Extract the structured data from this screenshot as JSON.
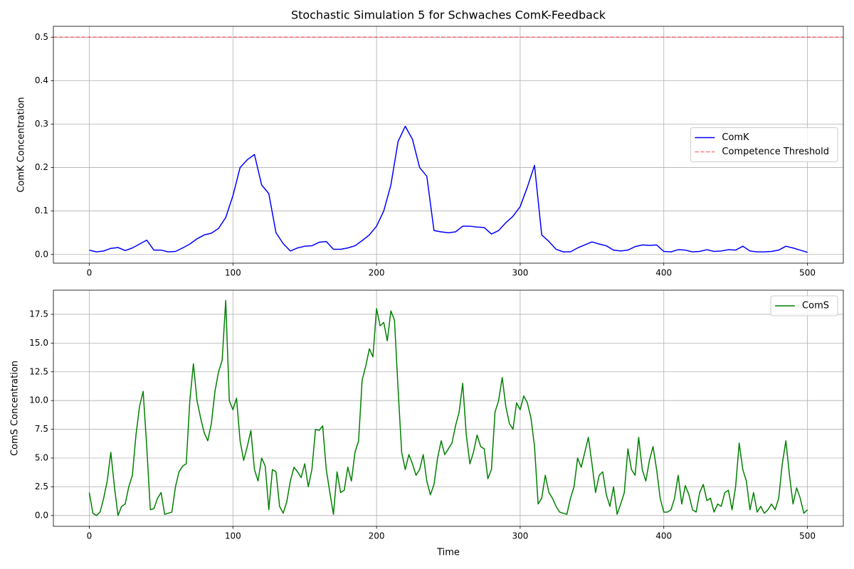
{
  "chart_data": [
    {
      "type": "line",
      "title": "Stochastic Simulation 5 for Schwaches ComK-Feedback",
      "ylabel": "ComK Concentration",
      "x": [
        0,
        5,
        10,
        15,
        20,
        25,
        30,
        35,
        40,
        45,
        50,
        55,
        60,
        65,
        70,
        75,
        80,
        85,
        90,
        95,
        100,
        105,
        110,
        115,
        120,
        125,
        130,
        135,
        140,
        145,
        150,
        155,
        160,
        165,
        170,
        175,
        180,
        185,
        190,
        195,
        200,
        205,
        210,
        215,
        220,
        225,
        230,
        235,
        240,
        245,
        250,
        255,
        260,
        265,
        270,
        275,
        280,
        285,
        290,
        295,
        300,
        305,
        310,
        315,
        320,
        325,
        330,
        335,
        340,
        345,
        350,
        355,
        360,
        365,
        370,
        375,
        380,
        385,
        390,
        395,
        400,
        405,
        410,
        415,
        420,
        425,
        430,
        435,
        440,
        445,
        450,
        455,
        460,
        465,
        470,
        475,
        480,
        485,
        490,
        495,
        500
      ],
      "series": [
        {
          "name": "ComK",
          "color": "#0000ff",
          "values": [
            0.01,
            0.006,
            0.008,
            0.014,
            0.016,
            0.009,
            0.015,
            0.024,
            0.033,
            0.01,
            0.01,
            0.006,
            0.007,
            0.015,
            0.024,
            0.036,
            0.045,
            0.049,
            0.06,
            0.085,
            0.135,
            0.2,
            0.218,
            0.23,
            0.16,
            0.14,
            0.05,
            0.025,
            0.008,
            0.015,
            0.019,
            0.02,
            0.028,
            0.03,
            0.012,
            0.012,
            0.015,
            0.02,
            0.032,
            0.045,
            0.065,
            0.1,
            0.16,
            0.26,
            0.295,
            0.265,
            0.2,
            0.18,
            0.055,
            0.052,
            0.05,
            0.052,
            0.065,
            0.065,
            0.063,
            0.062,
            0.047,
            0.055,
            0.073,
            0.088,
            0.11,
            0.155,
            0.205,
            0.045,
            0.03,
            0.012,
            0.006,
            0.006,
            0.015,
            0.022,
            0.029,
            0.024,
            0.02,
            0.01,
            0.008,
            0.01,
            0.018,
            0.022,
            0.021,
            0.022,
            0.007,
            0.006,
            0.011,
            0.01,
            0.006,
            0.007,
            0.011,
            0.007,
            0.008,
            0.011,
            0.01,
            0.019,
            0.008,
            0.006,
            0.006,
            0.007,
            0.01,
            0.019,
            0.015,
            0.01,
            0.005
          ]
        }
      ],
      "hlines": [
        {
          "name": "Competence Threshold",
          "value": 0.5,
          "color": "#ff0000",
          "style": "dashed",
          "alpha": 0.5
        }
      ],
      "xlim": [
        -25,
        525
      ],
      "ylim": [
        -0.02,
        0.525
      ],
      "xticks": [
        0,
        100,
        200,
        300,
        400,
        500
      ],
      "yticks": [
        {
          "value": 0,
          "label": "0.0"
        },
        0.1,
        0.2,
        0.3,
        0.4,
        0.5
      ],
      "grid": true,
      "legend": "center right"
    },
    {
      "type": "line",
      "xlabel": "Time",
      "ylabel": "ComS Concentration",
      "x": [
        0,
        2.5,
        5,
        7.5,
        10,
        12.5,
        15,
        17.5,
        20,
        22.5,
        25,
        27.5,
        30,
        32.5,
        35,
        37.5,
        40,
        42.5,
        45,
        47.5,
        50,
        52.5,
        55,
        57.5,
        60,
        62.5,
        65,
        67.5,
        70,
        72.5,
        75,
        77.5,
        80,
        82.5,
        85,
        87.5,
        90,
        92.5,
        95,
        97.5,
        100,
        102.5,
        105,
        107.5,
        110,
        112.5,
        115,
        117.5,
        120,
        122.5,
        125,
        127.5,
        130,
        132.5,
        135,
        137.5,
        140,
        142.5,
        145,
        147.5,
        150,
        152.5,
        155,
        157.5,
        160,
        162.5,
        165,
        167.5,
        170,
        172.5,
        175,
        177.5,
        180,
        182.5,
        185,
        187.5,
        190,
        192.5,
        195,
        197.5,
        200,
        202.5,
        205,
        207.5,
        210,
        212.5,
        215,
        217.5,
        220,
        222.5,
        225,
        227.5,
        230,
        232.5,
        235,
        237.5,
        240,
        242.5,
        245,
        247.5,
        250,
        252.5,
        255,
        257.5,
        260,
        262.5,
        265,
        267.5,
        270,
        272.5,
        275,
        277.5,
        280,
        282.5,
        285,
        287.5,
        290,
        292.5,
        295,
        297.5,
        300,
        302.5,
        305,
        307.5,
        310,
        312.5,
        315,
        317.5,
        320,
        322.5,
        325,
        327.5,
        330,
        332.5,
        335,
        337.5,
        340,
        342.5,
        345,
        347.5,
        350,
        352.5,
        355,
        357.5,
        360,
        362.5,
        365,
        367.5,
        370,
        372.5,
        375,
        377.5,
        380,
        382.5,
        385,
        387.5,
        390,
        392.5,
        395,
        397.5,
        400,
        402.5,
        405,
        407.5,
        410,
        412.5,
        415,
        417.5,
        420,
        422.5,
        425,
        427.5,
        430,
        432.5,
        435,
        437.5,
        440,
        442.5,
        445,
        447.5,
        450,
        452.5,
        455,
        457.5,
        460,
        462.5,
        465,
        467.5,
        470,
        472.5,
        475,
        477.5,
        480,
        482.5,
        485,
        487.5,
        490,
        492.5,
        495,
        497.5,
        500
      ],
      "series": [
        {
          "name": "ComS",
          "color": "#008000",
          "values": [
            2.0,
            0.2,
            0,
            0.3,
            1.5,
            3.0,
            5.5,
            2.5,
            0,
            0.8,
            1.0,
            2.5,
            3.5,
            7.0,
            9.5,
            10.8,
            6.0,
            0.5,
            0.6,
            1.5,
            2.0,
            0.1,
            0.2,
            0.3,
            2.5,
            3.8,
            4.3,
            4.5,
            10.0,
            13.2,
            10.0,
            8.5,
            7.2,
            6.5,
            8.0,
            10.8,
            12.5,
            13.5,
            18.7,
            10.0,
            9.2,
            10.2,
            6.5,
            4.8,
            6.0,
            7.4,
            4.0,
            3.0,
            5.0,
            4.3,
            0.5,
            4.0,
            3.8,
            0.8,
            0.2,
            1.2,
            3.0,
            4.2,
            3.8,
            3.3,
            4.5,
            2.5,
            4.0,
            7.5,
            7.4,
            7.8,
            4.0,
            2.0,
            0.1,
            3.8,
            2.0,
            2.2,
            4.2,
            3.0,
            5.5,
            6.5,
            11.8,
            13.0,
            14.5,
            13.8,
            18.0,
            16.5,
            16.8,
            15.2,
            17.8,
            17.0,
            11.0,
            5.5,
            4.0,
            5.3,
            4.5,
            3.5,
            4.0,
            5.3,
            3.0,
            1.8,
            2.7,
            5.0,
            6.5,
            5.3,
            5.8,
            6.3,
            7.8,
            9.0,
            11.5,
            7.0,
            4.5,
            5.5,
            7.0,
            6.0,
            5.8,
            3.2,
            4.0,
            9.0,
            10.0,
            12.0,
            9.5,
            8.0,
            7.5,
            9.8,
            9.2,
            10.4,
            9.8,
            8.5,
            6.0,
            1.0,
            1.5,
            3.5,
            2.0,
            1.5,
            0.8,
            0.3,
            0.2,
            0.1,
            1.5,
            2.5,
            5.0,
            4.2,
            5.5,
            6.8,
            4.5,
            2.0,
            3.5,
            3.8,
            1.8,
            0.8,
            2.5,
            0.1,
            1.0,
            2.0,
            5.8,
            4.0,
            3.5,
            6.8,
            4.0,
            3.0,
            4.8,
            6.0,
            4.0,
            1.5,
            0.3,
            0.3,
            0.5,
            1.5,
            3.5,
            1.0,
            2.6,
            1.8,
            0.5,
            0.3,
            2.0,
            2.7,
            1.3,
            1.5,
            0.3,
            1.0,
            0.8,
            2.0,
            2.2,
            0.5,
            2.5,
            6.3,
            4.0,
            3.0,
            0.5,
            2.0,
            0.3,
            0.8,
            0.2,
            0.5,
            1.0,
            0.5,
            1.5,
            4.5,
            6.5,
            3.5,
            1.0,
            2.4,
            1.5,
            0.2,
            0.5
          ]
        }
      ],
      "xlim": [
        -25,
        525
      ],
      "ylim": [
        -0.94,
        19.6
      ],
      "xticks": [
        0,
        100,
        200,
        300,
        400,
        500
      ],
      "yticks": [
        {
          "value": 0,
          "label": "0.0"
        },
        2.5,
        {
          "value": 5,
          "label": "5.0"
        },
        7.5,
        {
          "value": 10,
          "label": "10.0"
        },
        12.5,
        {
          "value": 15,
          "label": "15.0"
        },
        17.5
      ],
      "grid": true,
      "legend": "upper right"
    }
  ]
}
